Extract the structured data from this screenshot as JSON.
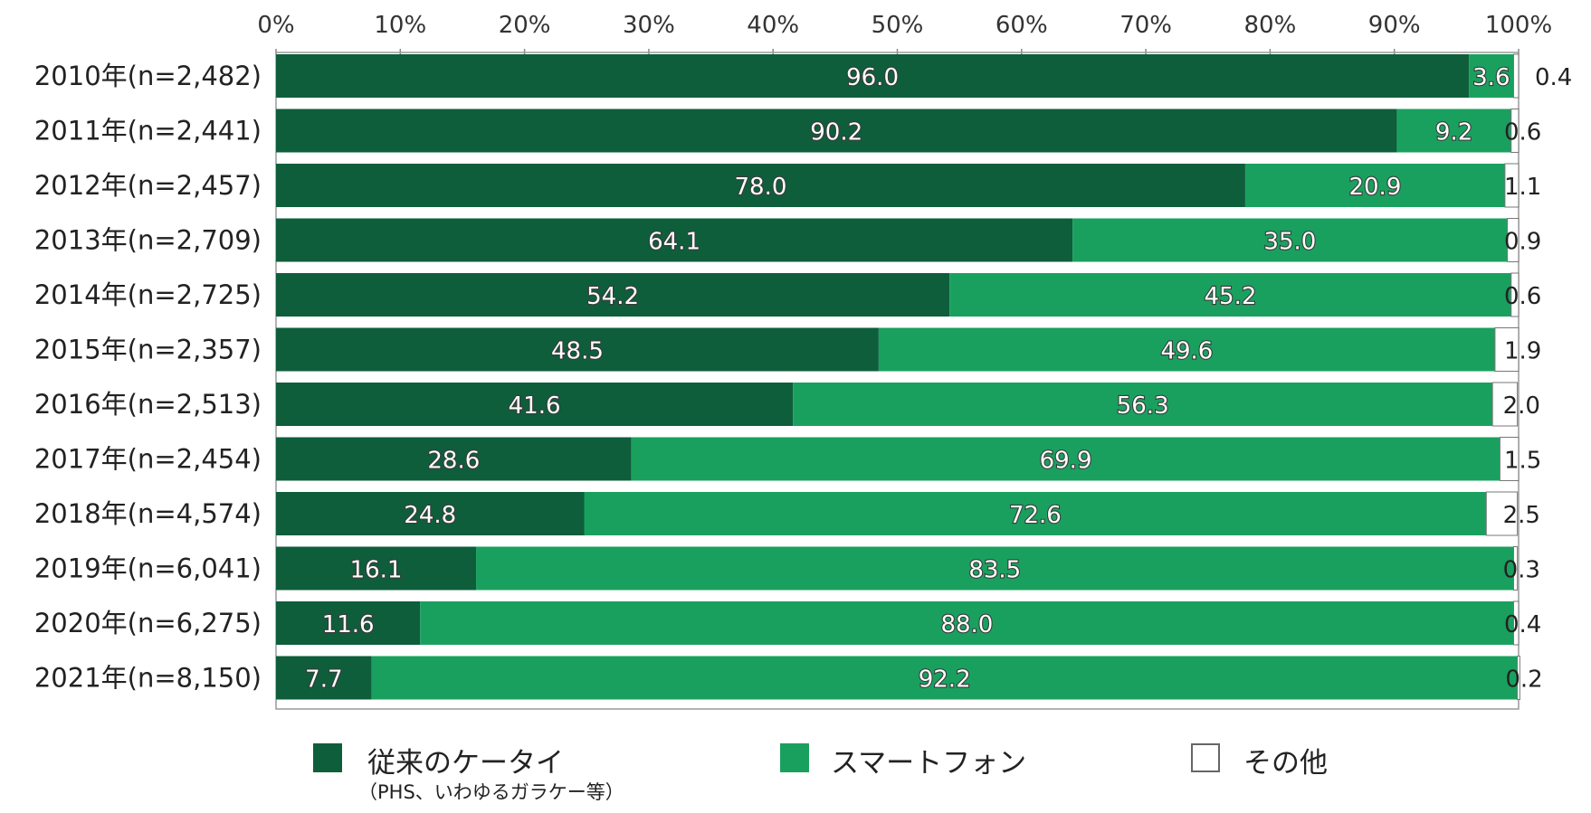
{
  "chart_data": {
    "type": "bar",
    "orientation": "horizontal",
    "stacked": true,
    "categories": [
      "2010年(n=2,482)",
      "2011年(n=2,441)",
      "2012年(n=2,457)",
      "2013年(n=2,709)",
      "2014年(n=2,725)",
      "2015年(n=2,357)",
      "2016年(n=2,513)",
      "2017年(n=2,454)",
      "2018年(n=4,574)",
      "2019年(n=6,041)",
      "2020年(n=6,275)",
      "2021年(n=8,150)"
    ],
    "series": [
      {
        "name": "従来のケータイ",
        "color": "#0e5e3c",
        "values": [
          96.0,
          90.2,
          78.0,
          64.1,
          54.2,
          48.5,
          41.6,
          28.6,
          24.8,
          16.1,
          11.6,
          7.7
        ],
        "labels": [
          "96.0",
          "90.2",
          "78.0",
          "64.1",
          "54.2",
          "48.5",
          "41.6",
          "28.6",
          "24.8",
          "16.1",
          "11.6",
          "7.7"
        ]
      },
      {
        "name": "スマートフォン",
        "color": "#1aa05e",
        "values": [
          3.6,
          9.2,
          20.9,
          35.0,
          45.2,
          49.6,
          56.3,
          69.9,
          72.6,
          83.5,
          88.0,
          92.2
        ],
        "labels": [
          "3.6",
          "9.2",
          "20.9",
          "35.0",
          "45.2",
          "49.6",
          "56.3",
          "69.9",
          "72.6",
          "83.5",
          "88.0",
          "92.2"
        ]
      },
      {
        "name": "その他",
        "color": "#ffffff",
        "values": [
          0.4,
          0.6,
          1.1,
          0.9,
          0.6,
          1.9,
          2.0,
          1.5,
          2.5,
          0.3,
          0.4,
          0.2
        ],
        "labels": [
          "0.4",
          "0.6",
          "1.1",
          "0.9",
          "0.6",
          "1.9",
          "2.0",
          "1.5",
          "2.5",
          "0.3",
          "0.4",
          "0.2"
        ]
      }
    ],
    "xlim": [
      0,
      100
    ],
    "x_ticks": [
      "0%",
      "10%",
      "20%",
      "30%",
      "40%",
      "50%",
      "60%",
      "70%",
      "80%",
      "90%",
      "100%"
    ],
    "axis_position": "top",
    "grid": false,
    "legend_position": "bottom",
    "legend_note": "（PHS、いわゆるガラケー等）"
  }
}
